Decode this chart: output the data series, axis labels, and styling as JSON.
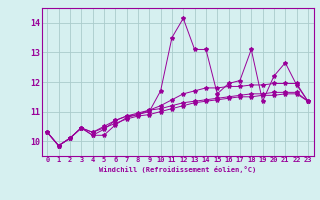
{
  "xlabel": "Windchill (Refroidissement éolien,°C)",
  "ylabel": "",
  "background_color": "#d6f0f0",
  "line_color": "#990099",
  "grid_color": "#aacccc",
  "xlim": [
    -0.5,
    23.5
  ],
  "ylim": [
    9.5,
    14.5
  ],
  "yticks": [
    10,
    11,
    12,
    13,
    14
  ],
  "xticks": [
    0,
    1,
    2,
    3,
    4,
    5,
    6,
    7,
    8,
    9,
    10,
    11,
    12,
    13,
    14,
    15,
    16,
    17,
    18,
    19,
    20,
    21,
    22,
    23
  ],
  "series1": [
    10.3,
    9.85,
    10.1,
    10.45,
    10.2,
    10.2,
    10.55,
    10.8,
    10.9,
    11.0,
    11.7,
    13.5,
    14.15,
    13.1,
    13.1,
    11.6,
    11.95,
    12.05,
    13.1,
    11.35,
    12.2,
    12.65,
    11.9,
    11.35
  ],
  "series2": [
    10.3,
    9.85,
    10.1,
    10.45,
    10.2,
    10.4,
    10.7,
    10.85,
    10.9,
    11.05,
    11.2,
    11.4,
    11.6,
    11.7,
    11.8,
    11.8,
    11.85,
    11.85,
    11.9,
    11.9,
    11.95,
    11.95,
    11.95,
    11.35
  ],
  "series3": [
    10.3,
    9.85,
    10.1,
    10.45,
    10.3,
    10.45,
    10.6,
    10.75,
    10.85,
    10.9,
    11.0,
    11.1,
    11.2,
    11.3,
    11.35,
    11.4,
    11.45,
    11.5,
    11.5,
    11.55,
    11.55,
    11.6,
    11.6,
    11.35
  ],
  "series4": [
    10.3,
    9.85,
    10.1,
    10.45,
    10.3,
    10.5,
    10.7,
    10.85,
    10.95,
    11.05,
    11.1,
    11.2,
    11.3,
    11.35,
    11.4,
    11.45,
    11.5,
    11.55,
    11.6,
    11.6,
    11.65,
    11.65,
    11.65,
    11.35
  ],
  "tick_fontsize": 5,
  "xlabel_fontsize": 5,
  "marker_size": 3,
  "linewidth": 0.7
}
